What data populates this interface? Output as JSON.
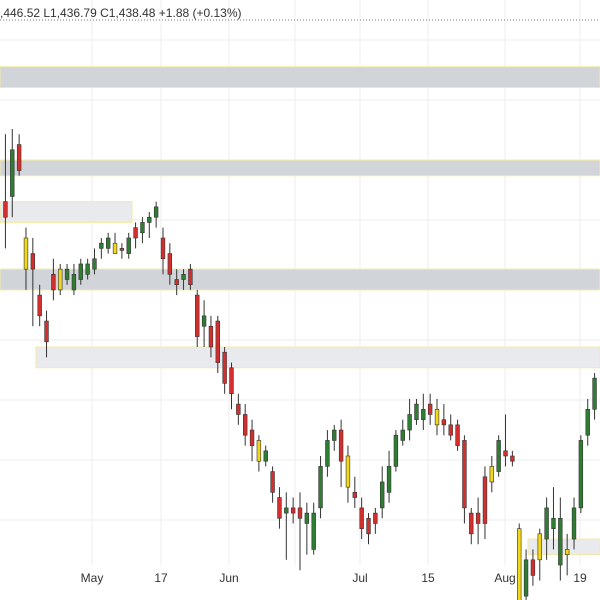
{
  "ohlc_text": ",446.52 L1,436.79 C1,438.48 +1.88 (+0.13%)",
  "colors": {
    "up": "#2e7d32",
    "down": "#d32f2f",
    "doji": "#f2d81b",
    "zone_fill": "#d1d4d9",
    "zone_fill_light": "#e8eaed",
    "zone_border": "#f3e9a6",
    "grid": "#eeeeee"
  },
  "chart_data": {
    "type": "candlestick",
    "x_tick_labels": [
      "May",
      "17",
      "Jun",
      "Jul",
      "15",
      "Aug",
      "19"
    ],
    "ylim": [
      1395,
      1500
    ],
    "grid": true,
    "candles": [
      {
        "o": 1462,
        "h": 1478,
        "l": 1456,
        "c": 1465,
        "dir": "down"
      },
      {
        "o": 1466,
        "h": 1479,
        "l": 1462,
        "c": 1475,
        "dir": "up"
      },
      {
        "o": 1476,
        "h": 1478,
        "l": 1470,
        "c": 1471,
        "dir": "down"
      },
      {
        "o": 1458,
        "h": 1460,
        "l": 1448,
        "c": 1452,
        "dir": "doji"
      },
      {
        "o": 1455,
        "h": 1458,
        "l": 1441,
        "c": 1452,
        "dir": "down"
      },
      {
        "o": 1447,
        "h": 1449,
        "l": 1441,
        "c": 1443,
        "dir": "down"
      },
      {
        "o": 1442,
        "h": 1444,
        "l": 1435,
        "c": 1438,
        "dir": "down"
      },
      {
        "o": 1451,
        "h": 1454,
        "l": 1446,
        "c": 1448,
        "dir": "down"
      },
      {
        "o": 1452,
        "h": 1453,
        "l": 1447,
        "c": 1448,
        "dir": "doji"
      },
      {
        "o": 1450,
        "h": 1453,
        "l": 1449,
        "c": 1452,
        "dir": "up"
      },
      {
        "o": 1448,
        "h": 1453,
        "l": 1447,
        "c": 1451,
        "dir": "up"
      },
      {
        "o": 1450,
        "h": 1454,
        "l": 1449,
        "c": 1453,
        "dir": "up"
      },
      {
        "o": 1451,
        "h": 1454,
        "l": 1450,
        "c": 1453,
        "dir": "up"
      },
      {
        "o": 1452,
        "h": 1456,
        "l": 1451,
        "c": 1454,
        "dir": "up"
      },
      {
        "o": 1456,
        "h": 1458,
        "l": 1454,
        "c": 1457,
        "dir": "up"
      },
      {
        "o": 1456,
        "h": 1459,
        "l": 1455,
        "c": 1458,
        "dir": "up"
      },
      {
        "o": 1455,
        "h": 1459,
        "l": 1455,
        "c": 1457,
        "dir": "doji"
      },
      {
        "o": 1456,
        "h": 1457,
        "l": 1454,
        "c": 1456,
        "dir": "down"
      },
      {
        "o": 1455,
        "h": 1459,
        "l": 1454,
        "c": 1458,
        "dir": "up"
      },
      {
        "o": 1458,
        "h": 1461,
        "l": 1456,
        "c": 1460,
        "dir": "down"
      },
      {
        "o": 1459,
        "h": 1462,
        "l": 1457,
        "c": 1461,
        "dir": "up"
      },
      {
        "o": 1461,
        "h": 1463,
        "l": 1458,
        "c": 1462,
        "dir": "up"
      },
      {
        "o": 1462,
        "h": 1465,
        "l": 1460,
        "c": 1464,
        "dir": "up"
      },
      {
        "o": 1458,
        "h": 1460,
        "l": 1451,
        "c": 1454,
        "dir": "down"
      },
      {
        "o": 1455,
        "h": 1457,
        "l": 1449,
        "c": 1451,
        "dir": "down"
      },
      {
        "o": 1450,
        "h": 1452,
        "l": 1447,
        "c": 1449,
        "dir": "down"
      },
      {
        "o": 1450,
        "h": 1452,
        "l": 1448,
        "c": 1451,
        "dir": "up"
      },
      {
        "o": 1452,
        "h": 1453,
        "l": 1448,
        "c": 1449,
        "dir": "down"
      },
      {
        "o": 1447,
        "h": 1448,
        "l": 1437,
        "c": 1439,
        "dir": "down"
      },
      {
        "o": 1443,
        "h": 1446,
        "l": 1437,
        "c": 1441,
        "dir": "up"
      },
      {
        "o": 1441,
        "h": 1443,
        "l": 1435,
        "c": 1437,
        "dir": "down"
      },
      {
        "o": 1442,
        "h": 1443,
        "l": 1432,
        "c": 1434,
        "dir": "down"
      },
      {
        "o": 1436,
        "h": 1437,
        "l": 1428,
        "c": 1430,
        "dir": "down"
      },
      {
        "o": 1433,
        "h": 1434,
        "l": 1425,
        "c": 1428,
        "dir": "down"
      },
      {
        "o": 1426,
        "h": 1428,
        "l": 1422,
        "c": 1424,
        "dir": "down"
      },
      {
        "o": 1424,
        "h": 1426,
        "l": 1418,
        "c": 1420,
        "dir": "down"
      },
      {
        "o": 1421,
        "h": 1423,
        "l": 1415,
        "c": 1418,
        "dir": "down"
      },
      {
        "o": 1419,
        "h": 1420,
        "l": 1413,
        "c": 1415,
        "dir": "doji"
      },
      {
        "o": 1415,
        "h": 1418,
        "l": 1414,
        "c": 1417,
        "dir": "up"
      },
      {
        "o": 1413,
        "h": 1414,
        "l": 1407,
        "c": 1409,
        "dir": "down"
      },
      {
        "o": 1408,
        "h": 1410,
        "l": 1402,
        "c": 1404,
        "dir": "down"
      },
      {
        "o": 1405,
        "h": 1409,
        "l": 1396,
        "c": 1406,
        "dir": "up"
      },
      {
        "o": 1406,
        "h": 1408,
        "l": 1403,
        "c": 1405,
        "dir": "down"
      },
      {
        "o": 1406,
        "h": 1409,
        "l": 1394,
        "c": 1404,
        "dir": "down"
      },
      {
        "o": 1403,
        "h": 1407,
        "l": 1397,
        "c": 1405,
        "dir": "up"
      },
      {
        "o": 1398,
        "h": 1407,
        "l": 1397,
        "c": 1405,
        "dir": "up"
      },
      {
        "o": 1406,
        "h": 1416,
        "l": 1404,
        "c": 1414,
        "dir": "up"
      },
      {
        "o": 1414,
        "h": 1421,
        "l": 1412,
        "c": 1419,
        "dir": "up"
      },
      {
        "o": 1419,
        "h": 1422,
        "l": 1417,
        "c": 1421,
        "dir": "up"
      },
      {
        "o": 1421,
        "h": 1423,
        "l": 1410,
        "c": 1415,
        "dir": "down"
      },
      {
        "o": 1416,
        "h": 1418,
        "l": 1407,
        "c": 1410,
        "dir": "doji"
      },
      {
        "o": 1409,
        "h": 1412,
        "l": 1406,
        "c": 1408,
        "dir": "down"
      },
      {
        "o": 1406,
        "h": 1408,
        "l": 1400,
        "c": 1402,
        "dir": "down"
      },
      {
        "o": 1401,
        "h": 1405,
        "l": 1399,
        "c": 1404,
        "dir": "down"
      },
      {
        "o": 1405,
        "h": 1406,
        "l": 1401,
        "c": 1403,
        "dir": "down"
      },
      {
        "o": 1406,
        "h": 1414,
        "l": 1404,
        "c": 1411,
        "dir": "up"
      },
      {
        "o": 1409,
        "h": 1417,
        "l": 1407,
        "c": 1414,
        "dir": "up"
      },
      {
        "o": 1414,
        "h": 1421,
        "l": 1413,
        "c": 1420,
        "dir": "up"
      },
      {
        "o": 1419,
        "h": 1423,
        "l": 1418,
        "c": 1421,
        "dir": "up"
      },
      {
        "o": 1421,
        "h": 1427,
        "l": 1419,
        "c": 1424,
        "dir": "up"
      },
      {
        "o": 1423,
        "h": 1427,
        "l": 1422,
        "c": 1426,
        "dir": "up"
      },
      {
        "o": 1425,
        "h": 1428,
        "l": 1421,
        "c": 1423,
        "dir": "up"
      },
      {
        "o": 1424,
        "h": 1428,
        "l": 1422,
        "c": 1426,
        "dir": "down"
      },
      {
        "o": 1425,
        "h": 1427,
        "l": 1420,
        "c": 1422,
        "dir": "doji"
      },
      {
        "o": 1423,
        "h": 1426,
        "l": 1420,
        "c": 1422,
        "dir": "down"
      },
      {
        "o": 1422,
        "h": 1424,
        "l": 1419,
        "c": 1420,
        "dir": "down"
      },
      {
        "o": 1422,
        "h": 1423,
        "l": 1417,
        "c": 1418,
        "dir": "down"
      },
      {
        "o": 1419,
        "h": 1420,
        "l": 1403,
        "c": 1406,
        "dir": "down"
      },
      {
        "o": 1405,
        "h": 1406,
        "l": 1399,
        "c": 1401,
        "dir": "down"
      },
      {
        "o": 1405,
        "h": 1408,
        "l": 1399,
        "c": 1403,
        "dir": "down"
      },
      {
        "o": 1403,
        "h": 1414,
        "l": 1400,
        "c": 1412,
        "dir": "down"
      },
      {
        "o": 1411,
        "h": 1416,
        "l": 1409,
        "c": 1414,
        "dir": "doji"
      },
      {
        "o": 1413,
        "h": 1420,
        "l": 1412,
        "c": 1419,
        "dir": "up"
      },
      {
        "o": 1417,
        "h": 1424,
        "l": 1414,
        "c": 1416,
        "dir": "down"
      },
      {
        "o": 1415,
        "h": 1417,
        "l": 1414,
        "c": 1416,
        "dir": "down"
      },
      {
        "o": 1402,
        "h": 1403,
        "l": 1386,
        "c": 1388,
        "dir": "doji"
      },
      {
        "o": 1389,
        "h": 1398,
        "l": 1387,
        "c": 1396,
        "dir": "up"
      },
      {
        "o": 1393,
        "h": 1398,
        "l": 1391,
        "c": 1396,
        "dir": "down"
      },
      {
        "o": 1396,
        "h": 1402,
        "l": 1392,
        "c": 1401,
        "dir": "doji"
      },
      {
        "o": 1400,
        "h": 1408,
        "l": 1396,
        "c": 1406,
        "dir": "up"
      },
      {
        "o": 1402,
        "h": 1410,
        "l": 1398,
        "c": 1404,
        "dir": "up"
      },
      {
        "o": 1404,
        "h": 1408,
        "l": 1392,
        "c": 1395,
        "dir": "up"
      },
      {
        "o": 1397,
        "h": 1401,
        "l": 1393,
        "c": 1398,
        "dir": "doji"
      },
      {
        "o": 1400,
        "h": 1408,
        "l": 1398,
        "c": 1406,
        "dir": "up"
      },
      {
        "o": 1406,
        "h": 1420,
        "l": 1405,
        "c": 1419,
        "dir": "up"
      },
      {
        "o": 1420,
        "h": 1427,
        "l": 1418,
        "c": 1425,
        "dir": "up"
      },
      {
        "o": 1425,
        "h": 1432,
        "l": 1423,
        "c": 1431,
        "dir": "up"
      }
    ],
    "zones": [
      {
        "y_top": 1491,
        "y_bottom": 1487,
        "x_from": 0,
        "x_to": 1,
        "style": "dark"
      },
      {
        "y_top": 1473,
        "y_bottom": 1470,
        "x_from": 0,
        "x_to": 1,
        "style": "dark"
      },
      {
        "y_top": 1465,
        "y_bottom": 1461,
        "x_from": 0,
        "x_to": 0.22,
        "style": "light"
      },
      {
        "y_top": 1452,
        "y_bottom": 1448,
        "x_from": 0,
        "x_to": 1,
        "style": "dark"
      },
      {
        "y_top": 1437,
        "y_bottom": 1433,
        "x_from": 0.06,
        "x_to": 1,
        "style": "light"
      },
      {
        "y_top": 1400,
        "y_bottom": 1397,
        "x_from": 0.88,
        "x_to": 1,
        "style": "light"
      }
    ],
    "dotted_line": 1500
  }
}
